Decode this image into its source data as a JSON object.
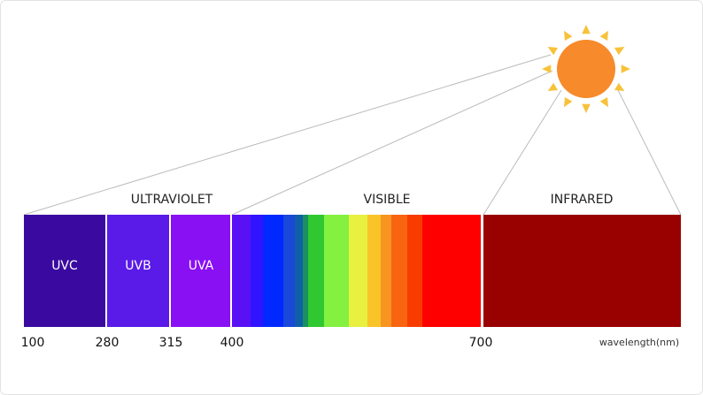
{
  "sections": [
    "ULTRAVIOLET",
    "VISIBLE",
    "INFRARED"
  ],
  "bands": [
    "UVC",
    "UVB",
    "UVA"
  ],
  "ticks": [
    "100",
    "280",
    "315",
    "400",
    "700"
  ],
  "axis_label": "wavelength(nm)"
}
